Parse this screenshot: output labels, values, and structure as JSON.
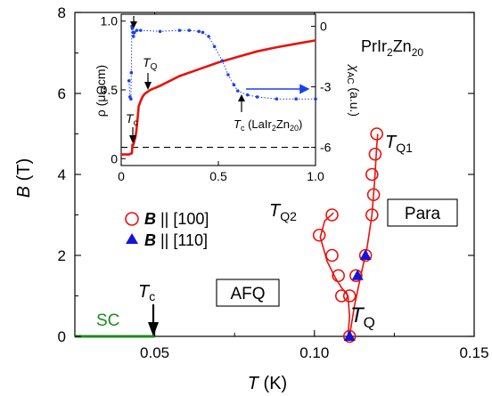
{
  "chart_data": [
    {
      "type": "scatter",
      "panel": "main",
      "xlabel_var": "T",
      "xlabel_unit": "(K)",
      "ylabel_var": "B",
      "ylabel_unit": "(T)",
      "xlim": [
        0.025,
        0.15
      ],
      "ylim": [
        0,
        8
      ],
      "x_ticks": [
        0.05,
        0.1,
        0.15
      ],
      "x_tick_labels": [
        "0.05",
        "0.10",
        "0.15"
      ],
      "y_ticks": [
        0,
        2,
        4,
        6,
        8
      ],
      "y_tick_labels": [
        "0",
        "2",
        "4",
        "6",
        "8"
      ],
      "grid": false,
      "legend_position": "center-left",
      "series": [
        {
          "name": "B || [100]",
          "name_var": "B",
          "name_rest": " || [100]",
          "marker": "open-circle",
          "color": "#e8120c",
          "points": [
            {
              "x": 0.111,
              "y": 0.0
            },
            {
              "x": 0.1085,
              "y": 1.0
            },
            {
              "x": 0.111,
              "y": 1.0
            },
            {
              "x": 0.1075,
              "y": 1.5
            },
            {
              "x": 0.1055,
              "y": 2.0
            },
            {
              "x": 0.1015,
              "y": 2.5
            },
            {
              "x": 0.1055,
              "y": 3.0
            },
            {
              "x": 0.113,
              "y": 1.5
            },
            {
              "x": 0.116,
              "y": 2.0
            },
            {
              "x": 0.118,
              "y": 3.0
            },
            {
              "x": 0.1185,
              "y": 3.5
            },
            {
              "x": 0.118,
              "y": 4.0
            },
            {
              "x": 0.119,
              "y": 4.5
            },
            {
              "x": 0.1195,
              "y": 5.0
            }
          ]
        },
        {
          "name": "B || [110]",
          "name_var": "B",
          "name_rest": " || [110]",
          "marker": "filled-triangle",
          "color": "#1515d8",
          "points": [
            {
              "x": 0.111,
              "y": 0.0
            },
            {
              "x": 0.1135,
              "y": 1.5
            },
            {
              "x": 0.116,
              "y": 2.0
            }
          ]
        }
      ],
      "lines": [
        {
          "id": "TQ-line",
          "color": "#e8120c",
          "points": [
            [
              0.1105,
              0.0
            ],
            [
              0.111,
              0.5
            ],
            [
              0.1105,
              1.0
            ],
            [
              0.1085,
              1.2
            ]
          ]
        },
        {
          "id": "TQ2-line",
          "color": "#e8120c",
          "points": [
            [
              0.1085,
              1.2
            ],
            [
              0.1065,
              1.45
            ],
            [
              0.104,
              1.85
            ],
            [
              0.1018,
              2.45
            ],
            [
              0.1032,
              2.85
            ],
            [
              0.106,
              3.05
            ]
          ]
        },
        {
          "id": "TQ1-line",
          "color": "#e8120c",
          "points": [
            [
              0.111,
              0.0
            ],
            [
              0.1125,
              0.75
            ],
            [
              0.1145,
              1.5
            ],
            [
              0.1165,
              2.2
            ],
            [
              0.118,
              3.0
            ],
            [
              0.1188,
              3.8
            ],
            [
              0.1195,
              4.7
            ],
            [
              0.1198,
              5.0
            ]
          ]
        },
        {
          "id": "sc-line",
          "color": "#1f8a1f",
          "points": [
            [
              0.025,
              0.0
            ],
            [
              0.05,
              0.0
            ]
          ]
        }
      ],
      "labels": {
        "TQ1_main": "T",
        "TQ1_sub": "Q1",
        "TQ2_main": "T",
        "TQ2_sub": "Q2",
        "TQ_main": "T",
        "TQ_sub": "Q",
        "Tc_main": "T",
        "Tc_sub": "c",
        "para": "Para",
        "afq": "AFQ",
        "sc": "SC"
      }
    },
    {
      "type": "line",
      "panel": "inset",
      "title_parts": [
        "PrIr",
        "2",
        "Zn",
        "20"
      ],
      "xlim": [
        0,
        1.0
      ],
      "x_ticks": [
        0,
        0.5,
        1.0
      ],
      "x_tick_labels": [
        "0",
        "0.5",
        "1.0"
      ],
      "ylim_left": [
        -0.05,
        1.05
      ],
      "y_ticks_left": [
        0,
        0.5,
        1.0
      ],
      "y_tick_labels_left": [
        "0",
        "0.5",
        "1.0"
      ],
      "ylabel_left": "ρ (μΩcm)",
      "ylim_right": [
        -6.9,
        0.6
      ],
      "y_ticks_right": [
        0,
        -3,
        -6
      ],
      "y_tick_labels_right": [
        "0",
        "-3",
        "-6"
      ],
      "ylabel_right_main": "χ",
      "ylabel_right_sub": "AC",
      "ylabel_right_unit": " (a.u.)",
      "series": [
        {
          "name": "ρ",
          "axis": "left",
          "color": "#e8120c",
          "style": "thick-line",
          "points": [
            [
              0,
              0.03
            ],
            [
              0.04,
              0.03
            ],
            [
              0.055,
              0.04
            ],
            [
              0.058,
              0.1
            ],
            [
              0.062,
              0.1
            ],
            [
              0.066,
              0.12
            ],
            [
              0.072,
              0.15
            ],
            [
              0.078,
              0.2
            ],
            [
              0.085,
              0.3
            ],
            [
              0.09,
              0.38
            ],
            [
              0.1,
              0.42
            ],
            [
              0.11,
              0.45
            ],
            [
              0.12,
              0.47
            ],
            [
              0.15,
              0.5
            ],
            [
              0.2,
              0.53
            ],
            [
              0.3,
              0.6
            ],
            [
              0.4,
              0.65
            ],
            [
              0.5,
              0.7
            ],
            [
              0.6,
              0.74
            ],
            [
              0.7,
              0.78
            ],
            [
              0.8,
              0.81
            ],
            [
              0.9,
              0.835
            ],
            [
              1.0,
              0.86
            ]
          ]
        },
        {
          "name": "χAC",
          "axis": "right",
          "color": "#1a3ff0",
          "style": "dotted-markers",
          "points": [
            [
              0.04,
              -2.7
            ],
            [
              0.045,
              -3.5
            ],
            [
              0.05,
              -3.6
            ],
            [
              0.052,
              -2.3
            ],
            [
              0.055,
              0.0
            ],
            [
              0.057,
              -0.1
            ],
            [
              0.06,
              -0.3
            ],
            [
              0.063,
              -0.5
            ],
            [
              0.068,
              -0.3
            ],
            [
              0.08,
              -0.2
            ],
            [
              0.1,
              -0.2
            ],
            [
              0.2,
              -0.25
            ],
            [
              0.3,
              -0.2
            ],
            [
              0.35,
              -0.2
            ],
            [
              0.4,
              -0.25
            ],
            [
              0.42,
              -0.3
            ],
            [
              0.45,
              -0.5
            ],
            [
              0.48,
              -1.0
            ],
            [
              0.52,
              -1.7
            ],
            [
              0.55,
              -2.4
            ],
            [
              0.58,
              -2.9
            ],
            [
              0.6,
              -3.2
            ],
            [
              0.65,
              -3.4
            ],
            [
              0.7,
              -3.5
            ],
            [
              0.8,
              -3.6
            ],
            [
              0.9,
              -3.6
            ],
            [
              1.0,
              -3.6
            ]
          ]
        }
      ],
      "reference_line": {
        "axis": "right",
        "y": -6.0,
        "style": "dashed"
      },
      "annotations": {
        "TQ_main": "T",
        "TQ_sub": "Q",
        "Tc_main": "T",
        "Tc_sub": "c",
        "Tc_lair_main": "T",
        "Tc_lair_sub": "c",
        "Tc_lair_paren": "(LaIr",
        "Tc_lair_sub2": "2",
        "Tc_lair_mid": "Zn",
        "Tc_lair_sub3": "20",
        "Tc_lair_end": ")"
      }
    }
  ]
}
